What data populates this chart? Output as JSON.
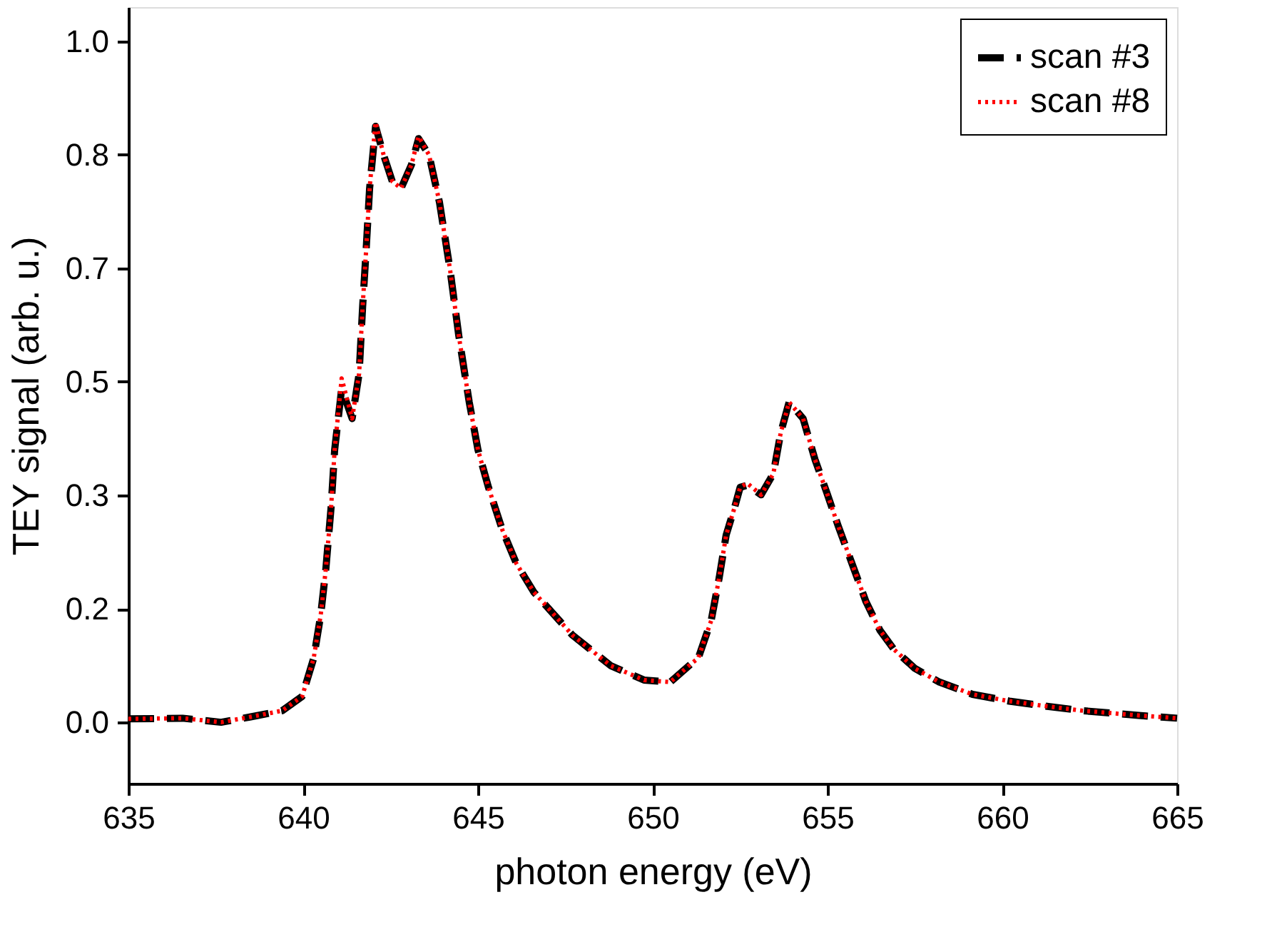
{
  "chart_data": {
    "type": "line",
    "xlabel": "photon energy (eV)",
    "ylabel": "TEY signal (arb. u.)",
    "xlim": [
      635,
      665
    ],
    "xticks": [
      635,
      640,
      645,
      650,
      655,
      660,
      665
    ],
    "ylim": [
      -0.09,
      1.05
    ],
    "yticks": [
      {
        "value": 0,
        "label": "0.0"
      },
      {
        "value": 0.1667,
        "label": "0.2"
      },
      {
        "value": 0.3333,
        "label": "0.3"
      },
      {
        "value": 0.5,
        "label": "0.5"
      },
      {
        "value": 0.6667,
        "label": "0.7"
      },
      {
        "value": 0.8333,
        "label": "0.8"
      },
      {
        "value": 1.0,
        "label": "1.0"
      }
    ],
    "grid": false,
    "legend": "top right",
    "marker": "none",
    "x": [
      635,
      636.55,
      637.65,
      638.5,
      639.4,
      639.97,
      640.3,
      640.5,
      640.65,
      640.8,
      640.9,
      641.1,
      641.4,
      641.6,
      641.7,
      641.8,
      641.9,
      642.07,
      642.3,
      642.55,
      642.8,
      643.1,
      643.3,
      643.6,
      643.9,
      644.2,
      644.45,
      644.75,
      645.0,
      645.3,
      645.7,
      646.1,
      646.6,
      647.7,
      648.8,
      649.75,
      650.5,
      651.1,
      651.3,
      651.67,
      651.9,
      652.1,
      652.35,
      652.5,
      652.7,
      653.1,
      653.45,
      653.66,
      653.9,
      654.3,
      654.64,
      654.98,
      655.3,
      655.7,
      656.1,
      656.5,
      656.9,
      657.5,
      658.2,
      659.15,
      660.2,
      661.2,
      662.3,
      663.9,
      665
    ],
    "series": [
      {
        "name": "scan #3",
        "color": "#000000",
        "line_style": "dashed",
        "values": [
          0.005,
          0.006,
          0.0,
          0.008,
          0.017,
          0.038,
          0.094,
          0.157,
          0.226,
          0.317,
          0.4,
          0.49,
          0.446,
          0.512,
          0.61,
          0.693,
          0.784,
          0.875,
          0.833,
          0.794,
          0.784,
          0.819,
          0.857,
          0.833,
          0.763,
          0.665,
          0.568,
          0.47,
          0.4,
          0.345,
          0.282,
          0.233,
          0.191,
          0.128,
          0.083,
          0.062,
          0.059,
          0.086,
          0.094,
          0.149,
          0.212,
          0.275,
          0.317,
          0.345,
          0.348,
          0.334,
          0.365,
          0.425,
          0.47,
          0.446,
          0.386,
          0.337,
          0.289,
          0.233,
          0.177,
          0.135,
          0.107,
          0.079,
          0.059,
          0.041,
          0.031,
          0.024,
          0.017,
          0.01,
          0.006
        ]
      },
      {
        "name": "scan #8",
        "color": "#ff0000",
        "line_style": "dotted",
        "values": [
          0.005,
          0.006,
          0.0,
          0.008,
          0.017,
          0.038,
          0.094,
          0.157,
          0.226,
          0.317,
          0.4,
          0.505,
          0.446,
          0.512,
          0.61,
          0.693,
          0.784,
          0.881,
          0.833,
          0.794,
          0.784,
          0.819,
          0.86,
          0.833,
          0.763,
          0.665,
          0.568,
          0.47,
          0.4,
          0.345,
          0.282,
          0.233,
          0.191,
          0.128,
          0.083,
          0.062,
          0.059,
          0.086,
          0.094,
          0.149,
          0.212,
          0.275,
          0.317,
          0.345,
          0.351,
          0.334,
          0.365,
          0.425,
          0.47,
          0.446,
          0.386,
          0.337,
          0.289,
          0.233,
          0.177,
          0.135,
          0.107,
          0.079,
          0.059,
          0.041,
          0.031,
          0.024,
          0.017,
          0.01,
          0.006
        ]
      }
    ]
  }
}
